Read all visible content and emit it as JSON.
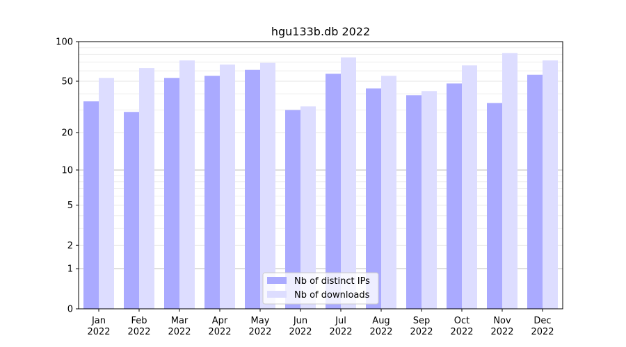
{
  "chart_data": {
    "type": "bar",
    "title": "hgu133b.db 2022",
    "xlabel": "",
    "ylabel": "",
    "yscale": "log(1+y)",
    "ylim": [
      0,
      100
    ],
    "yticks": [
      0,
      1,
      2,
      5,
      10,
      20,
      50,
      100
    ],
    "categories": [
      [
        "Jan",
        "2022"
      ],
      [
        "Feb",
        "2022"
      ],
      [
        "Mar",
        "2022"
      ],
      [
        "Apr",
        "2022"
      ],
      [
        "May",
        "2022"
      ],
      [
        "Jun",
        "2022"
      ],
      [
        "Jul",
        "2022"
      ],
      [
        "Aug",
        "2022"
      ],
      [
        "Sep",
        "2022"
      ],
      [
        "Oct",
        "2022"
      ],
      [
        "Nov",
        "2022"
      ],
      [
        "Dec",
        "2022"
      ]
    ],
    "series": [
      {
        "name": "Nb of distinct IPs",
        "color": "#aaaaff",
        "values": [
          35,
          29,
          53,
          55,
          61,
          30,
          57,
          44,
          39,
          48,
          34,
          56
        ]
      },
      {
        "name": "Nb of downloads",
        "color": "#ddddff",
        "values": [
          53,
          63,
          72,
          67,
          69,
          32,
          76,
          55,
          42,
          66,
          82,
          72
        ]
      }
    ],
    "grid": true,
    "legend_position": "bottom-center"
  }
}
